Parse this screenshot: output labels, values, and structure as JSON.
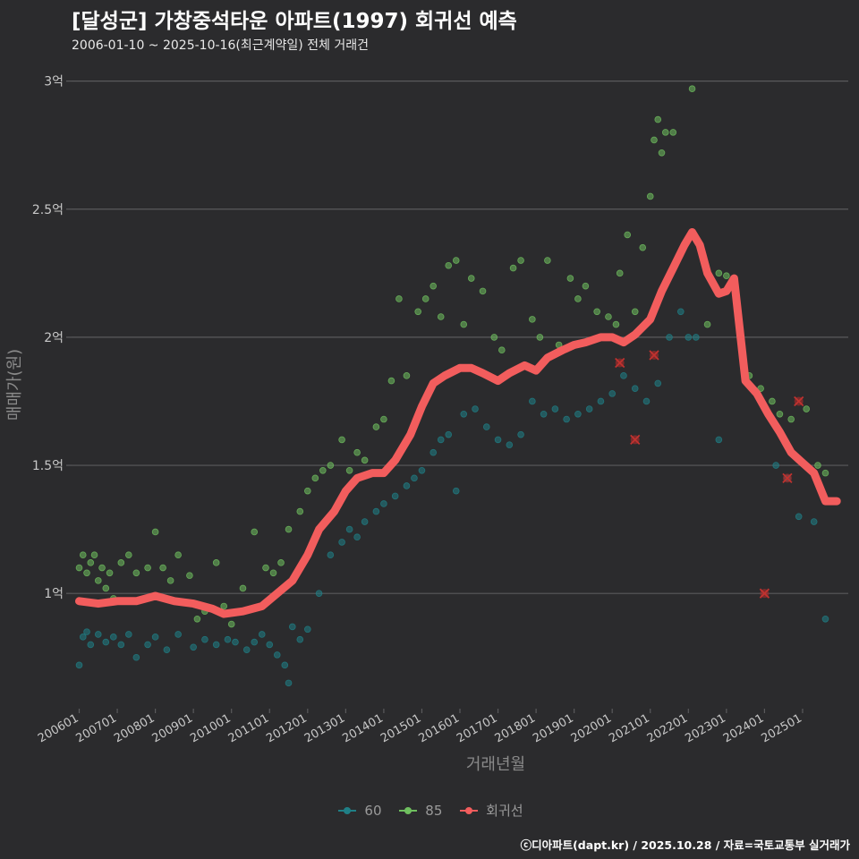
{
  "title": "[달성군] 가창중석타운 아파트(1997) 회귀선 예측",
  "subtitle": "2006-01-10 ~ 2025-10-16(최근계약일) 전체 거래건",
  "credit": "ⓒ디아파트(dapt.kr) / 2025.10.28 / 자료=국토교통부 실거래가",
  "colors": {
    "bg": "#2b2b2d",
    "grid": "#5a5a5c",
    "s60": "#1f7f86",
    "s85": "#6fbf5f",
    "trend": "#f25d5d",
    "axis_text": "#c8c8c8",
    "axis_title": "#8a8a8a"
  },
  "chart_data": {
    "type": "scatter",
    "title": "[달성군] 가창중석타운 아파트(1997) 회귀선 예측",
    "xlabel": "거래년월",
    "ylabel": "매매가(원)",
    "x_tick_labels": [
      "200601",
      "200701",
      "200801",
      "200901",
      "201001",
      "201101",
      "201201",
      "201301",
      "201401",
      "201501",
      "201601",
      "201701",
      "201801",
      "201901",
      "202001",
      "202101",
      "202201",
      "202301",
      "202401",
      "202501"
    ],
    "y_tick_labels": [
      "1억",
      "1.5억",
      "2억",
      "2.5억",
      "3억"
    ],
    "y_ticks": [
      1.0,
      1.5,
      2.0,
      2.5,
      3.0
    ],
    "ylim": [
      0.55,
      3.1
    ],
    "xlim": [
      2005.8,
      2026.2
    ],
    "legend": [
      "60",
      "85",
      "회귀선"
    ],
    "series": [
      {
        "name": "60",
        "points": [
          [
            2006.0,
            0.72
          ],
          [
            2006.1,
            0.83
          ],
          [
            2006.2,
            0.85
          ],
          [
            2006.3,
            0.8
          ],
          [
            2006.5,
            0.84
          ],
          [
            2006.7,
            0.81
          ],
          [
            2006.9,
            0.83
          ],
          [
            2007.1,
            0.8
          ],
          [
            2007.3,
            0.84
          ],
          [
            2007.5,
            0.75
          ],
          [
            2007.8,
            0.8
          ],
          [
            2008.0,
            0.83
          ],
          [
            2008.3,
            0.78
          ],
          [
            2008.6,
            0.84
          ],
          [
            2009.0,
            0.79
          ],
          [
            2009.3,
            0.82
          ],
          [
            2009.6,
            0.8
          ],
          [
            2009.9,
            0.82
          ],
          [
            2010.1,
            0.81
          ],
          [
            2010.4,
            0.78
          ],
          [
            2010.6,
            0.81
          ],
          [
            2010.8,
            0.84
          ],
          [
            2011.0,
            0.8
          ],
          [
            2011.2,
            0.76
          ],
          [
            2011.4,
            0.72
          ],
          [
            2011.5,
            0.65
          ],
          [
            2011.6,
            0.87
          ],
          [
            2011.8,
            0.82
          ],
          [
            2012.0,
            0.86
          ],
          [
            2012.3,
            1.0
          ],
          [
            2012.6,
            1.15
          ],
          [
            2012.9,
            1.2
          ],
          [
            2013.1,
            1.25
          ],
          [
            2013.3,
            1.22
          ],
          [
            2013.5,
            1.28
          ],
          [
            2013.8,
            1.32
          ],
          [
            2014.0,
            1.35
          ],
          [
            2014.3,
            1.38
          ],
          [
            2014.6,
            1.42
          ],
          [
            2014.8,
            1.45
          ],
          [
            2015.0,
            1.48
          ],
          [
            2015.3,
            1.55
          ],
          [
            2015.5,
            1.6
          ],
          [
            2015.7,
            1.62
          ],
          [
            2015.9,
            1.4
          ],
          [
            2016.1,
            1.7
          ],
          [
            2016.4,
            1.72
          ],
          [
            2016.7,
            1.65
          ],
          [
            2017.0,
            1.6
          ],
          [
            2017.3,
            1.58
          ],
          [
            2017.6,
            1.62
          ],
          [
            2017.9,
            1.75
          ],
          [
            2018.2,
            1.7
          ],
          [
            2018.5,
            1.72
          ],
          [
            2018.8,
            1.68
          ],
          [
            2019.1,
            1.7
          ],
          [
            2019.4,
            1.72
          ],
          [
            2019.7,
            1.75
          ],
          [
            2020.0,
            1.78
          ],
          [
            2020.3,
            1.85
          ],
          [
            2020.6,
            1.8
          ],
          [
            2020.9,
            1.75
          ],
          [
            2021.2,
            1.82
          ],
          [
            2021.5,
            2.0
          ],
          [
            2021.8,
            2.1
          ],
          [
            2022.0,
            2.0
          ],
          [
            2022.2,
            2.0
          ],
          [
            2022.8,
            1.6
          ],
          [
            2024.3,
            1.5
          ],
          [
            2024.6,
            1.45
          ],
          [
            2024.9,
            1.3
          ],
          [
            2025.3,
            1.28
          ],
          [
            2025.6,
            0.9
          ]
        ]
      },
      {
        "name": "85",
        "points": [
          [
            2006.0,
            1.1
          ],
          [
            2006.1,
            1.15
          ],
          [
            2006.2,
            1.08
          ],
          [
            2006.3,
            1.12
          ],
          [
            2006.4,
            1.15
          ],
          [
            2006.5,
            1.05
          ],
          [
            2006.6,
            1.1
          ],
          [
            2006.7,
            1.02
          ],
          [
            2006.8,
            1.08
          ],
          [
            2006.9,
            0.98
          ],
          [
            2007.1,
            1.12
          ],
          [
            2007.3,
            1.15
          ],
          [
            2007.5,
            1.08
          ],
          [
            2007.8,
            1.1
          ],
          [
            2008.0,
            1.24
          ],
          [
            2008.2,
            1.1
          ],
          [
            2008.4,
            1.05
          ],
          [
            2008.6,
            1.15
          ],
          [
            2008.9,
            1.07
          ],
          [
            2009.1,
            0.9
          ],
          [
            2009.3,
            0.93
          ],
          [
            2009.6,
            1.12
          ],
          [
            2009.8,
            0.95
          ],
          [
            2010.0,
            0.88
          ],
          [
            2010.3,
            1.02
          ],
          [
            2010.6,
            1.24
          ],
          [
            2010.9,
            1.1
          ],
          [
            2011.1,
            1.08
          ],
          [
            2011.3,
            1.12
          ],
          [
            2011.5,
            1.25
          ],
          [
            2011.8,
            1.32
          ],
          [
            2012.0,
            1.4
          ],
          [
            2012.2,
            1.45
          ],
          [
            2012.4,
            1.48
          ],
          [
            2012.6,
            1.5
          ],
          [
            2012.9,
            1.6
          ],
          [
            2013.1,
            1.48
          ],
          [
            2013.3,
            1.55
          ],
          [
            2013.5,
            1.52
          ],
          [
            2013.8,
            1.65
          ],
          [
            2014.0,
            1.68
          ],
          [
            2014.2,
            1.83
          ],
          [
            2014.4,
            2.15
          ],
          [
            2014.6,
            1.85
          ],
          [
            2014.9,
            2.1
          ],
          [
            2015.1,
            2.15
          ],
          [
            2015.3,
            2.2
          ],
          [
            2015.5,
            2.08
          ],
          [
            2015.7,
            2.28
          ],
          [
            2015.9,
            2.3
          ],
          [
            2016.1,
            2.05
          ],
          [
            2016.3,
            2.23
          ],
          [
            2016.6,
            2.18
          ],
          [
            2016.9,
            2.0
          ],
          [
            2017.1,
            1.95
          ],
          [
            2017.4,
            2.27
          ],
          [
            2017.6,
            2.3
          ],
          [
            2017.9,
            2.07
          ],
          [
            2018.1,
            2.0
          ],
          [
            2018.3,
            2.3
          ],
          [
            2018.6,
            1.97
          ],
          [
            2018.9,
            2.23
          ],
          [
            2019.1,
            2.15
          ],
          [
            2019.3,
            2.2
          ],
          [
            2019.6,
            2.1
          ],
          [
            2019.9,
            2.08
          ],
          [
            2020.1,
            2.05
          ],
          [
            2020.2,
            2.25
          ],
          [
            2020.4,
            2.4
          ],
          [
            2020.6,
            2.1
          ],
          [
            2020.8,
            2.35
          ],
          [
            2021.0,
            2.55
          ],
          [
            2021.1,
            2.77
          ],
          [
            2021.2,
            2.85
          ],
          [
            2021.3,
            2.72
          ],
          [
            2021.4,
            2.8
          ],
          [
            2021.6,
            2.8
          ],
          [
            2022.1,
            2.97
          ],
          [
            2022.5,
            2.05
          ],
          [
            2022.8,
            2.25
          ],
          [
            2023.0,
            2.24
          ],
          [
            2023.3,
            2.1
          ],
          [
            2023.6,
            1.85
          ],
          [
            2023.9,
            1.8
          ],
          [
            2024.2,
            1.75
          ],
          [
            2024.4,
            1.7
          ],
          [
            2024.7,
            1.68
          ],
          [
            2025.1,
            1.72
          ],
          [
            2025.4,
            1.5
          ],
          [
            2025.6,
            1.47
          ]
        ]
      },
      {
        "name": "회귀선",
        "points": [
          [
            2006.0,
            0.97
          ],
          [
            2006.5,
            0.96
          ],
          [
            2007.0,
            0.97
          ],
          [
            2007.5,
            0.97
          ],
          [
            2008.0,
            0.99
          ],
          [
            2008.5,
            0.97
          ],
          [
            2009.0,
            0.96
          ],
          [
            2009.5,
            0.94
          ],
          [
            2009.8,
            0.92
          ],
          [
            2010.3,
            0.93
          ],
          [
            2010.8,
            0.95
          ],
          [
            2011.2,
            1.0
          ],
          [
            2011.6,
            1.05
          ],
          [
            2012.0,
            1.15
          ],
          [
            2012.3,
            1.25
          ],
          [
            2012.7,
            1.32
          ],
          [
            2013.0,
            1.4
          ],
          [
            2013.3,
            1.45
          ],
          [
            2013.7,
            1.47
          ],
          [
            2014.0,
            1.47
          ],
          [
            2014.3,
            1.52
          ],
          [
            2014.7,
            1.62
          ],
          [
            2015.0,
            1.73
          ],
          [
            2015.3,
            1.82
          ],
          [
            2015.6,
            1.85
          ],
          [
            2016.0,
            1.88
          ],
          [
            2016.3,
            1.88
          ],
          [
            2016.6,
            1.86
          ],
          [
            2017.0,
            1.83
          ],
          [
            2017.3,
            1.86
          ],
          [
            2017.7,
            1.89
          ],
          [
            2018.0,
            1.87
          ],
          [
            2018.3,
            1.92
          ],
          [
            2018.7,
            1.95
          ],
          [
            2019.0,
            1.97
          ],
          [
            2019.3,
            1.98
          ],
          [
            2019.7,
            2.0
          ],
          [
            2020.0,
            2.0
          ],
          [
            2020.3,
            1.98
          ],
          [
            2020.6,
            2.01
          ],
          [
            2021.0,
            2.07
          ],
          [
            2021.3,
            2.18
          ],
          [
            2021.6,
            2.27
          ],
          [
            2021.9,
            2.36
          ],
          [
            2022.1,
            2.41
          ],
          [
            2022.3,
            2.36
          ],
          [
            2022.5,
            2.25
          ],
          [
            2022.8,
            2.17
          ],
          [
            2023.0,
            2.18
          ],
          [
            2023.2,
            2.23
          ],
          [
            2023.5,
            1.83
          ],
          [
            2023.8,
            1.78
          ],
          [
            2024.1,
            1.7
          ],
          [
            2024.4,
            1.63
          ],
          [
            2024.7,
            1.55
          ],
          [
            2025.0,
            1.51
          ],
          [
            2025.3,
            1.47
          ],
          [
            2025.6,
            1.36
          ],
          [
            2025.9,
            1.36
          ]
        ]
      }
    ],
    "outliers": [
      [
        2020.2,
        1.9
      ],
      [
        2020.6,
        1.6
      ],
      [
        2021.1,
        1.93
      ],
      [
        2024.0,
        1.0
      ],
      [
        2024.6,
        1.45
      ],
      [
        2024.9,
        1.75
      ]
    ]
  }
}
